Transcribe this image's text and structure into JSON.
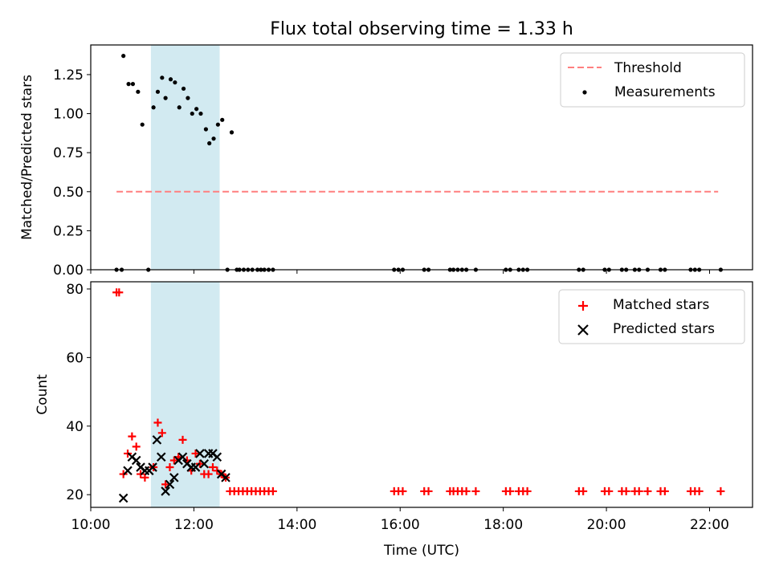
{
  "title": "Flux total observing time = 1.33 h",
  "colors": {
    "threshold": "#ff7f7f",
    "measurement": "#000000",
    "matched": "#ff0000",
    "predicted": "#000000",
    "shade": "#add8e6"
  },
  "chart_data": [
    {
      "type": "scatter",
      "ylabel": "Matched/Predicted stars",
      "ylim": [
        0,
        1.44
      ],
      "xlim": [
        "10:00",
        "22:50"
      ],
      "yticks": [
        0,
        0.25,
        0.5,
        0.75,
        1.0,
        1.25
      ],
      "ytick_labels": [
        "0.00",
        "0.25",
        "0.50",
        "0.75",
        "1.00",
        "1.25"
      ],
      "legend_position": "upper right",
      "shaded_interval": [
        "11:10",
        "12:30"
      ],
      "threshold": {
        "name": "Threshold",
        "y": 0.5,
        "x_start": "10:30",
        "x_end": "22:10"
      },
      "series": [
        {
          "name": "Measurements",
          "x": [
            "10:30",
            "10:36",
            "10:38",
            "10:44",
            "10:49",
            "10:55",
            "11:00",
            "11:07",
            "11:13",
            "11:18",
            "11:23",
            "11:27",
            "11:33",
            "11:38",
            "11:43",
            "11:48",
            "11:53",
            "11:58",
            "12:03",
            "12:08",
            "12:14",
            "12:18",
            "12:23",
            "12:28",
            "12:33",
            "12:39",
            "12:44",
            "12:50",
            "12:53",
            "12:58",
            "13:03",
            "13:08",
            "13:14",
            "13:18",
            "13:22",
            "13:27",
            "13:32",
            "15:53",
            "15:58",
            "16:03",
            "16:28",
            "16:33",
            "16:58",
            "17:02",
            "17:07",
            "17:12",
            "17:17",
            "17:28",
            "18:03",
            "18:08",
            "18:18",
            "18:23",
            "18:28",
            "19:28",
            "19:33",
            "19:58",
            "20:03",
            "20:18",
            "20:23",
            "20:33",
            "20:38",
            "20:48",
            "21:03",
            "21:08",
            "21:38",
            "21:43",
            "21:48",
            "22:13"
          ],
          "y": [
            0,
            0,
            1.37,
            1.19,
            1.19,
            1.14,
            0.93,
            0,
            1.04,
            1.14,
            1.23,
            1.1,
            1.22,
            1.2,
            1.04,
            1.16,
            1.1,
            1.0,
            1.03,
            1.0,
            0.9,
            0.81,
            0.84,
            0.93,
            0.96,
            0,
            0.88,
            0,
            0,
            0,
            0,
            0,
            0,
            0,
            0,
            0,
            0,
            0,
            0,
            0,
            0,
            0,
            0,
            0,
            0,
            0,
            0,
            0,
            0,
            0,
            0,
            0,
            0,
            0,
            0,
            0,
            0,
            0,
            0,
            0,
            0,
            0,
            0,
            0,
            0,
            0,
            0,
            0
          ]
        }
      ]
    },
    {
      "type": "scatter",
      "xlabel": "Time (UTC)",
      "ylabel": "Count",
      "ylim": [
        16.3,
        82.1
      ],
      "xlim": [
        "10:00",
        "22:50"
      ],
      "yticks": [
        20,
        40,
        60,
        80
      ],
      "xticks": [
        "10:00",
        "12:00",
        "14:00",
        "16:00",
        "18:00",
        "20:00",
        "22:00"
      ],
      "legend_position": "upper right",
      "shaded_interval": [
        "11:10",
        "12:30"
      ],
      "series": [
        {
          "name": "Matched stars",
          "marker": "+",
          "x": [
            "10:30",
            "10:33",
            "10:38",
            "10:43",
            "10:48",
            "10:53",
            "10:58",
            "11:03",
            "11:13",
            "11:18",
            "11:23",
            "11:27",
            "11:32",
            "11:37",
            "11:42",
            "11:47",
            "11:52",
            "11:57",
            "12:02",
            "12:07",
            "12:12",
            "12:17",
            "12:22",
            "12:27",
            "12:32",
            "12:37",
            "12:42",
            "12:47",
            "12:52",
            "12:57",
            "13:02",
            "13:07",
            "13:12",
            "13:17",
            "13:22",
            "13:27",
            "13:32",
            "15:53",
            "15:58",
            "16:03",
            "16:28",
            "16:33",
            "16:58",
            "17:02",
            "17:07",
            "17:12",
            "17:17",
            "17:28",
            "18:03",
            "18:08",
            "18:18",
            "18:23",
            "18:28",
            "19:28",
            "19:33",
            "19:58",
            "20:03",
            "20:18",
            "20:23",
            "20:33",
            "20:38",
            "20:48",
            "21:03",
            "21:08",
            "21:38",
            "21:43",
            "21:48",
            "22:13"
          ],
          "y": [
            79,
            79,
            26,
            32,
            37,
            34,
            26,
            25,
            28,
            41,
            38,
            23,
            28,
            30,
            31,
            36,
            30,
            27,
            32,
            29,
            26,
            26,
            28,
            27,
            26,
            25,
            21,
            21,
            21,
            21,
            21,
            21,
            21,
            21,
            21,
            21,
            21,
            21,
            21,
            21,
            21,
            21,
            21,
            21,
            21,
            21,
            21,
            21,
            21,
            21,
            21,
            21,
            21,
            21,
            21,
            21,
            21,
            21,
            21,
            21,
            21,
            21,
            21,
            21,
            21,
            21,
            21,
            21
          ]
        },
        {
          "name": "Predicted stars",
          "marker": "x",
          "x": [
            "10:38",
            "10:43",
            "10:48",
            "10:53",
            "10:58",
            "11:03",
            "11:08",
            "11:12",
            "11:17",
            "11:22",
            "11:27",
            "11:32",
            "11:37",
            "11:42",
            "11:47",
            "11:52",
            "11:57",
            "12:02",
            "12:07",
            "12:12",
            "12:17",
            "12:22",
            "12:27",
            "12:32",
            "12:37"
          ],
          "y": [
            19,
            27,
            31,
            30,
            28,
            27,
            27,
            28,
            36,
            31,
            21,
            23,
            25,
            30,
            31,
            29,
            28,
            28,
            32,
            29,
            32,
            32,
            31,
            26,
            25
          ]
        }
      ]
    }
  ]
}
